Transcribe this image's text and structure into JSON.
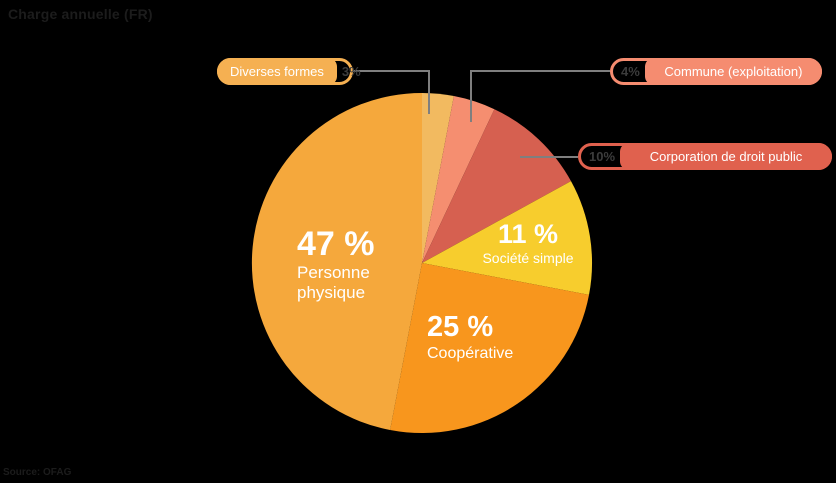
{
  "page": {
    "title": "Charge annuelle (FR)",
    "source": "Source: OFAG",
    "background_color": "#000000"
  },
  "chart_data": {
    "type": "pie",
    "title": "Charge annuelle (FR)",
    "unit": "%",
    "start_angle": "12 o'clock",
    "direction": "clockwise",
    "legend_position": "callout bubbles at top and right",
    "slices": [
      {
        "label": "Diverses formes",
        "value": 3,
        "color": "#F2BA60",
        "label_style": "callout"
      },
      {
        "label": "Commune (exploitation)",
        "value": 4,
        "color": "#F58E70",
        "label_style": "callout"
      },
      {
        "label": "Corporation de droit public",
        "value": 10,
        "color": "#D66050",
        "label_style": "callout"
      },
      {
        "label": "Société simple",
        "value": 11,
        "color": "#F7CD2D",
        "label_style": "inside"
      },
      {
        "label": "Coopérative",
        "value": 25,
        "color": "#F8961D",
        "label_style": "inside"
      },
      {
        "label": "Personne physique",
        "value": 47,
        "color": "#F5A83C",
        "label_style": "inside"
      }
    ]
  },
  "inside_labels": {
    "personne": {
      "percent": "47 %",
      "name_line1": "Personne",
      "name_line2": "physique"
    },
    "cooperative": {
      "percent": "25 %",
      "name": "Coopérative"
    },
    "societe": {
      "percent": "11 %",
      "name": "Société simple"
    }
  },
  "callouts": [
    {
      "label": "Diverses formes",
      "percent": "3%",
      "color": "#F5B052",
      "percent_side": "right"
    },
    {
      "label": "Commune (exploitation)",
      "percent": "4%",
      "color": "#F58C70",
      "percent_side": "left"
    },
    {
      "label": "Corporation de droit public",
      "percent": "10%",
      "color": "#E0614E",
      "percent_side": "left"
    }
  ],
  "colors": {
    "connector_line": "#7F7F7F",
    "callout_percent_text": "#3C3C3C",
    "title_text": "#1C1C1C",
    "label_text": "#FFFFFF"
  }
}
